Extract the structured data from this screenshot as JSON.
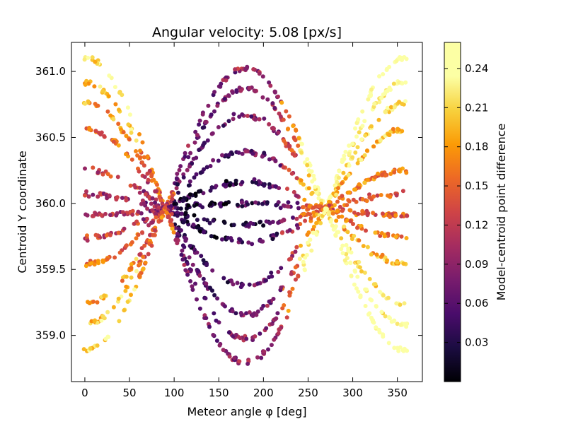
{
  "chart_data": {
    "type": "scatter",
    "title": "Angular velocity: 5.08 [px/s]",
    "xlabel": "Meteor angle φ [deg]",
    "ylabel": "Centroid Y coordinate",
    "xlim": [
      -15,
      378
    ],
    "ylim": [
      358.65,
      361.22
    ],
    "xticks": [
      0,
      50,
      100,
      150,
      200,
      250,
      300,
      350
    ],
    "xtick_labels": [
      "0",
      "50",
      "100",
      "150",
      "200",
      "250",
      "300",
      "350"
    ],
    "yticks": [
      359.0,
      359.5,
      360.0,
      360.5,
      361.0
    ],
    "ytick_labels": [
      "359.0",
      "359.5",
      "360.0",
      "360.5",
      "361.0"
    ],
    "grid": false,
    "colormap": "inferno",
    "colorbar": {
      "label": "Model-centroid  point difference",
      "range": [
        0.0,
        0.26
      ],
      "ticks": [
        0.03,
        0.06,
        0.09,
        0.12,
        0.15,
        0.18,
        0.21,
        0.24
      ],
      "tick_labels": [
        "0.03",
        "0.06",
        "0.09",
        "0.12",
        "0.15",
        "0.18",
        "0.21",
        "0.24"
      ]
    },
    "series": [
      {
        "offset": 1.1,
        "start": [
          0,
          359.93
        ],
        "end": [
          90,
          359.91
        ],
        "peak": [
          180,
          361.02
        ],
        "valley": [
          270,
          359.96
        ],
        "end2": [
          360,
          361.1
        ],
        "max_color": 0.24
      },
      {
        "offset": 0.92,
        "x": [
          0,
          45,
          90,
          135,
          180,
          225,
          270,
          315,
          360
        ],
        "y": [
          360.92,
          360.46,
          359.96,
          360.46,
          360.87,
          360.46,
          359.96,
          360.46,
          360.92
        ]
      },
      {
        "offset": 0.76,
        "x": [
          0,
          45,
          90,
          135,
          180,
          225,
          270,
          315,
          360
        ],
        "y": [
          360.76,
          360.38,
          359.96,
          360.34,
          360.67,
          360.34,
          359.96,
          360.38,
          360.76
        ]
      },
      {
        "offset": 0.56,
        "x": [
          0,
          45,
          90,
          135,
          180,
          225,
          270,
          315,
          360
        ],
        "y": [
          360.56,
          360.28,
          359.96,
          360.22,
          360.39,
          360.22,
          359.96,
          360.28,
          360.56
        ]
      },
      {
        "offset": 0.25,
        "x": [
          0,
          45,
          90,
          135,
          180,
          225,
          270,
          315,
          360
        ],
        "y": [
          360.25,
          360.11,
          359.96,
          360.09,
          360.16,
          360.09,
          359.96,
          360.11,
          360.25
        ]
      },
      {
        "offset": 0.07,
        "x": [
          0,
          45,
          90,
          135,
          180,
          225,
          270,
          315,
          360
        ],
        "y": [
          360.07,
          360.02,
          359.96,
          359.99,
          360.0,
          359.99,
          359.96,
          360.02,
          360.07
        ]
      },
      {
        "offset": -0.1,
        "x": [
          0,
          45,
          90,
          135,
          180,
          225,
          270,
          315,
          360
        ],
        "y": [
          359.91,
          359.93,
          359.96,
          359.89,
          359.84,
          359.89,
          359.96,
          359.93,
          359.91
        ]
      },
      {
        "offset": -0.26,
        "x": [
          0,
          45,
          90,
          135,
          180,
          225,
          270,
          315,
          360
        ],
        "y": [
          359.74,
          359.85,
          359.96,
          359.81,
          359.71,
          359.81,
          359.96,
          359.85,
          359.74
        ]
      },
      {
        "offset": -0.46,
        "x": [
          0,
          45,
          90,
          135,
          180,
          225,
          270,
          315,
          360
        ],
        "y": [
          359.54,
          359.74,
          359.96,
          359.65,
          359.38,
          359.65,
          359.96,
          359.74,
          359.54
        ]
      },
      {
        "offset": -0.76,
        "x": [
          0,
          45,
          90,
          135,
          180,
          225,
          270,
          315,
          360
        ],
        "y": [
          359.24,
          359.58,
          359.96,
          359.52,
          359.16,
          359.52,
          359.96,
          359.58,
          359.24
        ]
      },
      {
        "offset": -0.92,
        "x": [
          0,
          45,
          90,
          135,
          180,
          225,
          270,
          315,
          360
        ],
        "y": [
          359.08,
          359.5,
          359.96,
          359.45,
          358.97,
          359.45,
          359.96,
          359.5,
          359.08
        ]
      },
      {
        "offset": -1.08,
        "x": [
          0,
          45,
          90,
          135,
          180,
          225,
          270,
          315,
          360
        ],
        "y": [
          358.89,
          359.42,
          359.96,
          359.38,
          358.79,
          359.38,
          359.96,
          359.42,
          358.89
        ]
      }
    ],
    "model": {
      "center_y": 359.96,
      "amplitude_at_0": [
        1.14,
        0.96,
        0.8,
        0.6,
        0.29,
        0.11,
        -0.05,
        -0.22,
        -0.42,
        -0.72,
        -0.88,
        -1.07
      ],
      "amplitude_at_180": [
        1.06,
        0.91,
        0.71,
        0.43,
        0.2,
        0.04,
        -0.12,
        -0.25,
        -0.58,
        -0.8,
        -0.99,
        -1.17
      ],
      "color_by_phi": "high near 0/360 and edges of extremes, lowest near 150 degrees"
    }
  }
}
